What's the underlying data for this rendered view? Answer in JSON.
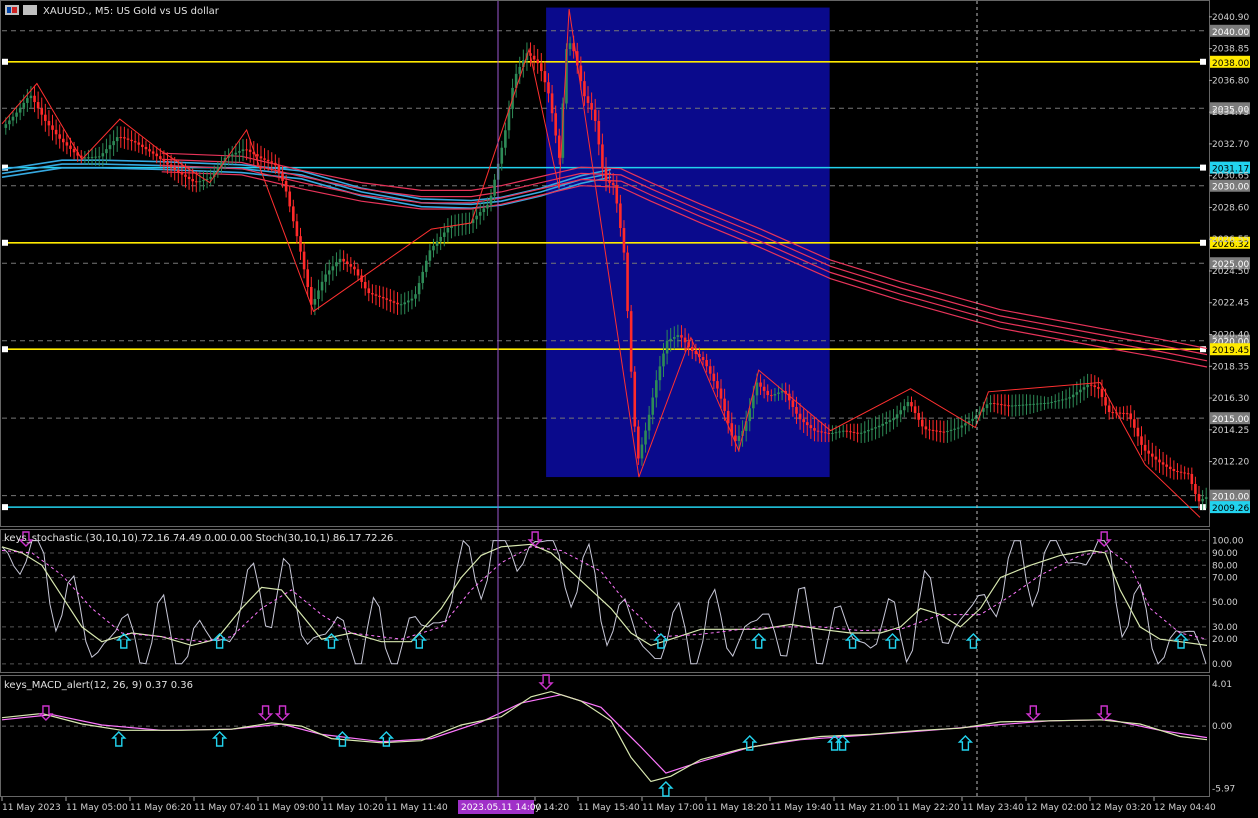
{
  "window": {
    "symbol_title": "XAUUSD., M5:  US Gold vs US dollar"
  },
  "indicators": {
    "stoch_title": "keys_stochastic (30,10,10) 72.16 74.49 0.00 0.00 Stoch(30,10,1) 86.17 72.26",
    "macd_title": "keys_MACD_alert(12, 26, 9) 0.37 0.36"
  },
  "price_axis": {
    "ticks": [
      "2040.90",
      "2038.85",
      "2036.80",
      "2034.75",
      "2032.70",
      "2030.65",
      "2028.60",
      "2026.55",
      "2024.50",
      "2022.45",
      "2020.40",
      "2018.35",
      "2016.30",
      "2014.25",
      "2012.20"
    ],
    "tagged_levels": [
      {
        "label": "2040.00",
        "value": 2040.0,
        "kind": "grid"
      },
      {
        "label": "2038.00",
        "value": 2038.0,
        "kind": "yellow"
      },
      {
        "label": "2035.00",
        "value": 2035.0,
        "kind": "grid"
      },
      {
        "label": "2031.17",
        "value": 2031.17,
        "kind": "cyan"
      },
      {
        "label": "2030.00",
        "value": 2030.0,
        "kind": "grid"
      },
      {
        "label": "2026.32",
        "value": 2026.32,
        "kind": "yellow"
      },
      {
        "label": "2025.00",
        "value": 2025.0,
        "kind": "grid"
      },
      {
        "label": "2020.00",
        "value": 2020.0,
        "kind": "grid"
      },
      {
        "label": "2019.45",
        "value": 2019.45,
        "kind": "yellow"
      },
      {
        "label": "2015.00",
        "value": 2015.0,
        "kind": "grid"
      },
      {
        "label": "2010.00",
        "value": 2010.0,
        "kind": "grid"
      },
      {
        "label": "2009.26",
        "value": 2009.26,
        "kind": "cyan"
      }
    ]
  },
  "stoch_axis": {
    "ticks": [
      "100.00",
      "90.00",
      "80.00",
      "70.00",
      "50.00",
      "30.00",
      "20.00",
      "0.00"
    ]
  },
  "macd_axis": {
    "ticks": [
      "4.01",
      "0.00",
      "-5.97"
    ]
  },
  "time_axis": {
    "labels": [
      "11 May 2023",
      "11 May 05:00",
      "11 May 06:20",
      "11 May 07:40",
      "11 May 09:00",
      "11 May 10:20",
      "11 May 11:40",
      "y 14:20",
      "11 May 15:40",
      "11 May 17:00",
      "11 May 18:20",
      "11 May 19:40",
      "11 May 21:00",
      "11 May 22:20",
      "11 May 23:40",
      "12 May 02:00",
      "12 May 03:20",
      "12 May 04:40"
    ],
    "crosshair_label": "2023.05.11 14:00"
  },
  "colors": {
    "background": "#000000",
    "bull": "#2e8b57",
    "bear": "#ff2a2a",
    "highlight_box": "#0a0a8c",
    "yellow_level": "#ffea00",
    "cyan_level": "#22d3ee",
    "ma_blue": "#36a9e1",
    "ma_red": "#e8345a",
    "zigzag": "#ff3030",
    "crosshair": "#9b59d0",
    "stoch_main": "#d8e8b0",
    "stoch_signal": "#ff77ff",
    "stoch_raw": "#c8c8d8",
    "arrow_up": "#22d3ee",
    "arrow_down": "#cc33cc"
  },
  "chart_data": {
    "type": "candlestick",
    "symbol": "XAUUSD.",
    "timeframe": "M5",
    "ylim": [
      2008.3,
      2041.6
    ],
    "price_path": [
      [
        0,
        2033.6
      ],
      [
        15,
        2034.6
      ],
      [
        30,
        2035.9
      ],
      [
        45,
        2034.2
      ],
      [
        60,
        2033.0
      ],
      [
        80,
        2031.8
      ],
      [
        100,
        2031.9
      ],
      [
        118,
        2033.2
      ],
      [
        135,
        2032.8
      ],
      [
        155,
        2032.0
      ],
      [
        175,
        2031.0
      ],
      [
        195,
        2030.2
      ],
      [
        210,
        2030.5
      ],
      [
        225,
        2031.8
      ],
      [
        245,
        2032.4
      ],
      [
        260,
        2031.8
      ],
      [
        275,
        2031.4
      ],
      [
        285,
        2030.0
      ],
      [
        300,
        2026.0
      ],
      [
        312,
        2022.2
      ],
      [
        325,
        2024.2
      ],
      [
        340,
        2025.3
      ],
      [
        355,
        2024.6
      ],
      [
        368,
        2023.1
      ],
      [
        385,
        2022.7
      ],
      [
        400,
        2022.3
      ],
      [
        415,
        2022.8
      ],
      [
        430,
        2025.8
      ],
      [
        450,
        2027.4
      ],
      [
        470,
        2027.6
      ],
      [
        490,
        2028.9
      ],
      [
        505,
        2033.2
      ],
      [
        515,
        2037.0
      ],
      [
        528,
        2038.6
      ],
      [
        540,
        2037.8
      ],
      [
        550,
        2035.8
      ],
      [
        560,
        2031.8
      ],
      [
        568,
        2039.6
      ],
      [
        575,
        2038.6
      ],
      [
        585,
        2035.8
      ],
      [
        595,
        2034.6
      ],
      [
        605,
        2030.4
      ],
      [
        615,
        2030.0
      ],
      [
        625,
        2025.6
      ],
      [
        632,
        2018.0
      ],
      [
        638,
        2012.1
      ],
      [
        648,
        2014.6
      ],
      [
        658,
        2017.7
      ],
      [
        668,
        2020.0
      ],
      [
        680,
        2020.4
      ],
      [
        692,
        2019.4
      ],
      [
        705,
        2018.7
      ],
      [
        720,
        2016.7
      ],
      [
        735,
        2013.4
      ],
      [
        745,
        2014.3
      ],
      [
        758,
        2017.3
      ],
      [
        770,
        2016.4
      ],
      [
        785,
        2016.8
      ],
      [
        800,
        2015.0
      ],
      [
        815,
        2014.2
      ],
      [
        830,
        2014.0
      ],
      [
        845,
        2014.2
      ],
      [
        860,
        2014.0
      ],
      [
        880,
        2014.5
      ],
      [
        895,
        2015.0
      ],
      [
        910,
        2016.1
      ],
      [
        925,
        2014.3
      ],
      [
        945,
        2014.1
      ],
      [
        960,
        2014.4
      ],
      [
        975,
        2015.0
      ],
      [
        990,
        2016.0
      ],
      [
        1010,
        2015.8
      ],
      [
        1030,
        2015.9
      ],
      [
        1050,
        2016.0
      ],
      [
        1070,
        2016.3
      ],
      [
        1090,
        2017.2
      ],
      [
        1100,
        2016.9
      ],
      [
        1110,
        2015.4
      ],
      [
        1130,
        2015.3
      ],
      [
        1145,
        2013.0
      ],
      [
        1160,
        2012.2
      ],
      [
        1175,
        2011.6
      ],
      [
        1190,
        2011.4
      ],
      [
        1200,
        2009.6
      ],
      [
        1207,
        2009.9
      ]
    ],
    "zigzag": [
      [
        0,
        2034.0
      ],
      [
        35,
        2036.6
      ],
      [
        80,
        2031.7
      ],
      [
        118,
        2034.3
      ],
      [
        158,
        2032.3
      ],
      [
        208,
        2030.2
      ],
      [
        245,
        2033.6
      ],
      [
        258,
        2031.2
      ],
      [
        312,
        2021.9
      ],
      [
        430,
        2027.2
      ],
      [
        470,
        2027.6
      ],
      [
        528,
        2038.8
      ],
      [
        558,
        2029.8
      ],
      [
        568,
        2041.4
      ],
      [
        638,
        2011.2
      ],
      [
        690,
        2020.2
      ],
      [
        738,
        2012.9
      ],
      [
        758,
        2018.1
      ],
      [
        830,
        2014.2
      ],
      [
        910,
        2016.9
      ],
      [
        975,
        2014.4
      ],
      [
        988,
        2016.7
      ],
      [
        1100,
        2017.3
      ],
      [
        1145,
        2012.0
      ],
      [
        1200,
        2008.6
      ]
    ],
    "series": [
      {
        "name": "blue MA",
        "values": [
          [
            0,
            2030.8
          ],
          [
            60,
            2031.4
          ],
          [
            100,
            2031.4
          ],
          [
            160,
            2031.3
          ],
          [
            240,
            2031.1
          ],
          [
            300,
            2030.7
          ],
          [
            360,
            2029.6
          ],
          [
            420,
            2028.9
          ],
          [
            470,
            2028.8
          ],
          [
            500,
            2029.0
          ],
          [
            540,
            2029.6
          ],
          [
            580,
            2030.4
          ],
          [
            610,
            2030.8
          ]
        ]
      },
      {
        "name": "red MA",
        "values": [
          [
            160,
            2031.5
          ],
          [
            240,
            2031.3
          ],
          [
            300,
            2030.4
          ],
          [
            360,
            2029.6
          ],
          [
            420,
            2029.1
          ],
          [
            470,
            2029.1
          ],
          [
            500,
            2029.4
          ],
          [
            540,
            2030.0
          ],
          [
            580,
            2030.6
          ],
          [
            620,
            2030.5
          ],
          [
            650,
            2029.6
          ],
          [
            700,
            2028.2
          ],
          [
            760,
            2026.6
          ],
          [
            830,
            2024.6
          ],
          [
            900,
            2023.2
          ],
          [
            1000,
            2021.4
          ],
          [
            1100,
            2020.2
          ],
          [
            1160,
            2019.5
          ],
          [
            1207,
            2018.9
          ]
        ]
      }
    ],
    "highlight_box": {
      "x": [
        545,
        829
      ],
      "y": [
        2011.2,
        2041.5
      ],
      "label": ""
    },
    "level_lines": {
      "yellow": [
        2038.0,
        2026.32,
        2019.45
      ],
      "cyan": [
        2031.17,
        2009.26
      ]
    },
    "stoch_panel": {
      "ylim": [
        -5,
        107
      ],
      "main": [
        [
          0,
          95
        ],
        [
          20,
          90
        ],
        [
          40,
          80
        ],
        [
          60,
          55
        ],
        [
          80,
          30
        ],
        [
          100,
          18
        ],
        [
          130,
          25
        ],
        [
          160,
          22
        ],
        [
          190,
          15
        ],
        [
          215,
          20
        ],
        [
          240,
          45
        ],
        [
          260,
          62
        ],
        [
          280,
          60
        ],
        [
          300,
          40
        ],
        [
          320,
          20
        ],
        [
          350,
          25
        ],
        [
          380,
          18
        ],
        [
          410,
          18
        ],
        [
          440,
          45
        ],
        [
          460,
          70
        ],
        [
          480,
          88
        ],
        [
          500,
          95
        ],
        [
          530,
          97
        ],
        [
          550,
          90
        ],
        [
          570,
          75
        ],
        [
          590,
          60
        ],
        [
          610,
          45
        ],
        [
          630,
          25
        ],
        [
          650,
          15
        ],
        [
          670,
          20
        ],
        [
          700,
          28
        ],
        [
          730,
          28
        ],
        [
          760,
          28
        ],
        [
          790,
          32
        ],
        [
          820,
          28
        ],
        [
          850,
          25
        ],
        [
          880,
          25
        ],
        [
          900,
          30
        ],
        [
          920,
          45
        ],
        [
          940,
          40
        ],
        [
          960,
          30
        ],
        [
          980,
          45
        ],
        [
          1000,
          70
        ],
        [
          1030,
          80
        ],
        [
          1060,
          88
        ],
        [
          1090,
          92
        ],
        [
          1105,
          90
        ],
        [
          1120,
          60
        ],
        [
          1140,
          30
        ],
        [
          1160,
          20
        ],
        [
          1180,
          18
        ],
        [
          1207,
          15
        ]
      ],
      "signal": [
        [
          0,
          92
        ],
        [
          30,
          90
        ],
        [
          60,
          72
        ],
        [
          90,
          45
        ],
        [
          120,
          25
        ],
        [
          160,
          22
        ],
        [
          200,
          18
        ],
        [
          230,
          22
        ],
        [
          260,
          45
        ],
        [
          290,
          60
        ],
        [
          320,
          40
        ],
        [
          350,
          25
        ],
        [
          400,
          20
        ],
        [
          440,
          30
        ],
        [
          470,
          60
        ],
        [
          500,
          82
        ],
        [
          530,
          95
        ],
        [
          560,
          92
        ],
        [
          600,
          75
        ],
        [
          630,
          45
        ],
        [
          660,
          22
        ],
        [
          700,
          24
        ],
        [
          740,
          28
        ],
        [
          780,
          30
        ],
        [
          820,
          30
        ],
        [
          860,
          27
        ],
        [
          900,
          28
        ],
        [
          940,
          40
        ],
        [
          980,
          40
        ],
        [
          1010,
          55
        ],
        [
          1040,
          72
        ],
        [
          1080,
          88
        ],
        [
          1110,
          92
        ],
        [
          1130,
          80
        ],
        [
          1150,
          45
        ],
        [
          1180,
          25
        ],
        [
          1207,
          20
        ]
      ]
    },
    "macd_panel": {
      "ylim": [
        -6.5,
        4.6
      ],
      "main": [
        [
          0,
          0.8
        ],
        [
          40,
          1.2
        ],
        [
          80,
          0.2
        ],
        [
          120,
          -0.4
        ],
        [
          180,
          -0.4
        ],
        [
          230,
          -0.3
        ],
        [
          270,
          0.3
        ],
        [
          300,
          0.0
        ],
        [
          330,
          -1.2
        ],
        [
          380,
          -1.6
        ],
        [
          420,
          -1.4
        ],
        [
          460,
          0.1
        ],
        [
          500,
          0.9
        ],
        [
          530,
          2.8
        ],
        [
          550,
          3.3
        ],
        [
          580,
          2.4
        ],
        [
          610,
          0.5
        ],
        [
          630,
          -3.0
        ],
        [
          650,
          -5.3
        ],
        [
          670,
          -4.8
        ],
        [
          700,
          -3.2
        ],
        [
          740,
          -2.2
        ],
        [
          780,
          -1.5
        ],
        [
          820,
          -1.0
        ],
        [
          870,
          -0.8
        ],
        [
          920,
          -0.4
        ],
        [
          960,
          -0.2
        ],
        [
          1000,
          0.4
        ],
        [
          1050,
          0.5
        ],
        [
          1100,
          0.6
        ],
        [
          1140,
          0.2
        ],
        [
          1180,
          -1.0
        ],
        [
          1207,
          -1.3
        ]
      ],
      "signal": [
        [
          0,
          0.6
        ],
        [
          50,
          1.1
        ],
        [
          100,
          0.1
        ],
        [
          160,
          -0.4
        ],
        [
          230,
          -0.3
        ],
        [
          280,
          0.2
        ],
        [
          320,
          -0.8
        ],
        [
          380,
          -1.5
        ],
        [
          430,
          -1.2
        ],
        [
          480,
          0.4
        ],
        [
          520,
          2.2
        ],
        [
          560,
          3.0
        ],
        [
          600,
          1.8
        ],
        [
          640,
          -2.0
        ],
        [
          665,
          -4.5
        ],
        [
          700,
          -3.4
        ],
        [
          750,
          -2.0
        ],
        [
          800,
          -1.3
        ],
        [
          860,
          -0.9
        ],
        [
          930,
          -0.4
        ],
        [
          980,
          0.0
        ],
        [
          1050,
          0.5
        ],
        [
          1110,
          0.6
        ],
        [
          1160,
          -0.4
        ],
        [
          1207,
          -1.1
        ]
      ]
    },
    "stoch_arrows": {
      "up": [
        122,
        218,
        330,
        418,
        660,
        758,
        852,
        892,
        973,
        1181
      ],
      "down": [
        24,
        534,
        1104
      ]
    },
    "macd_arrows": {
      "up": [
        117,
        218,
        341,
        385,
        749,
        834,
        842,
        965,
        665
      ],
      "down": [
        44,
        264,
        281,
        545,
        1033,
        1104
      ]
    }
  }
}
